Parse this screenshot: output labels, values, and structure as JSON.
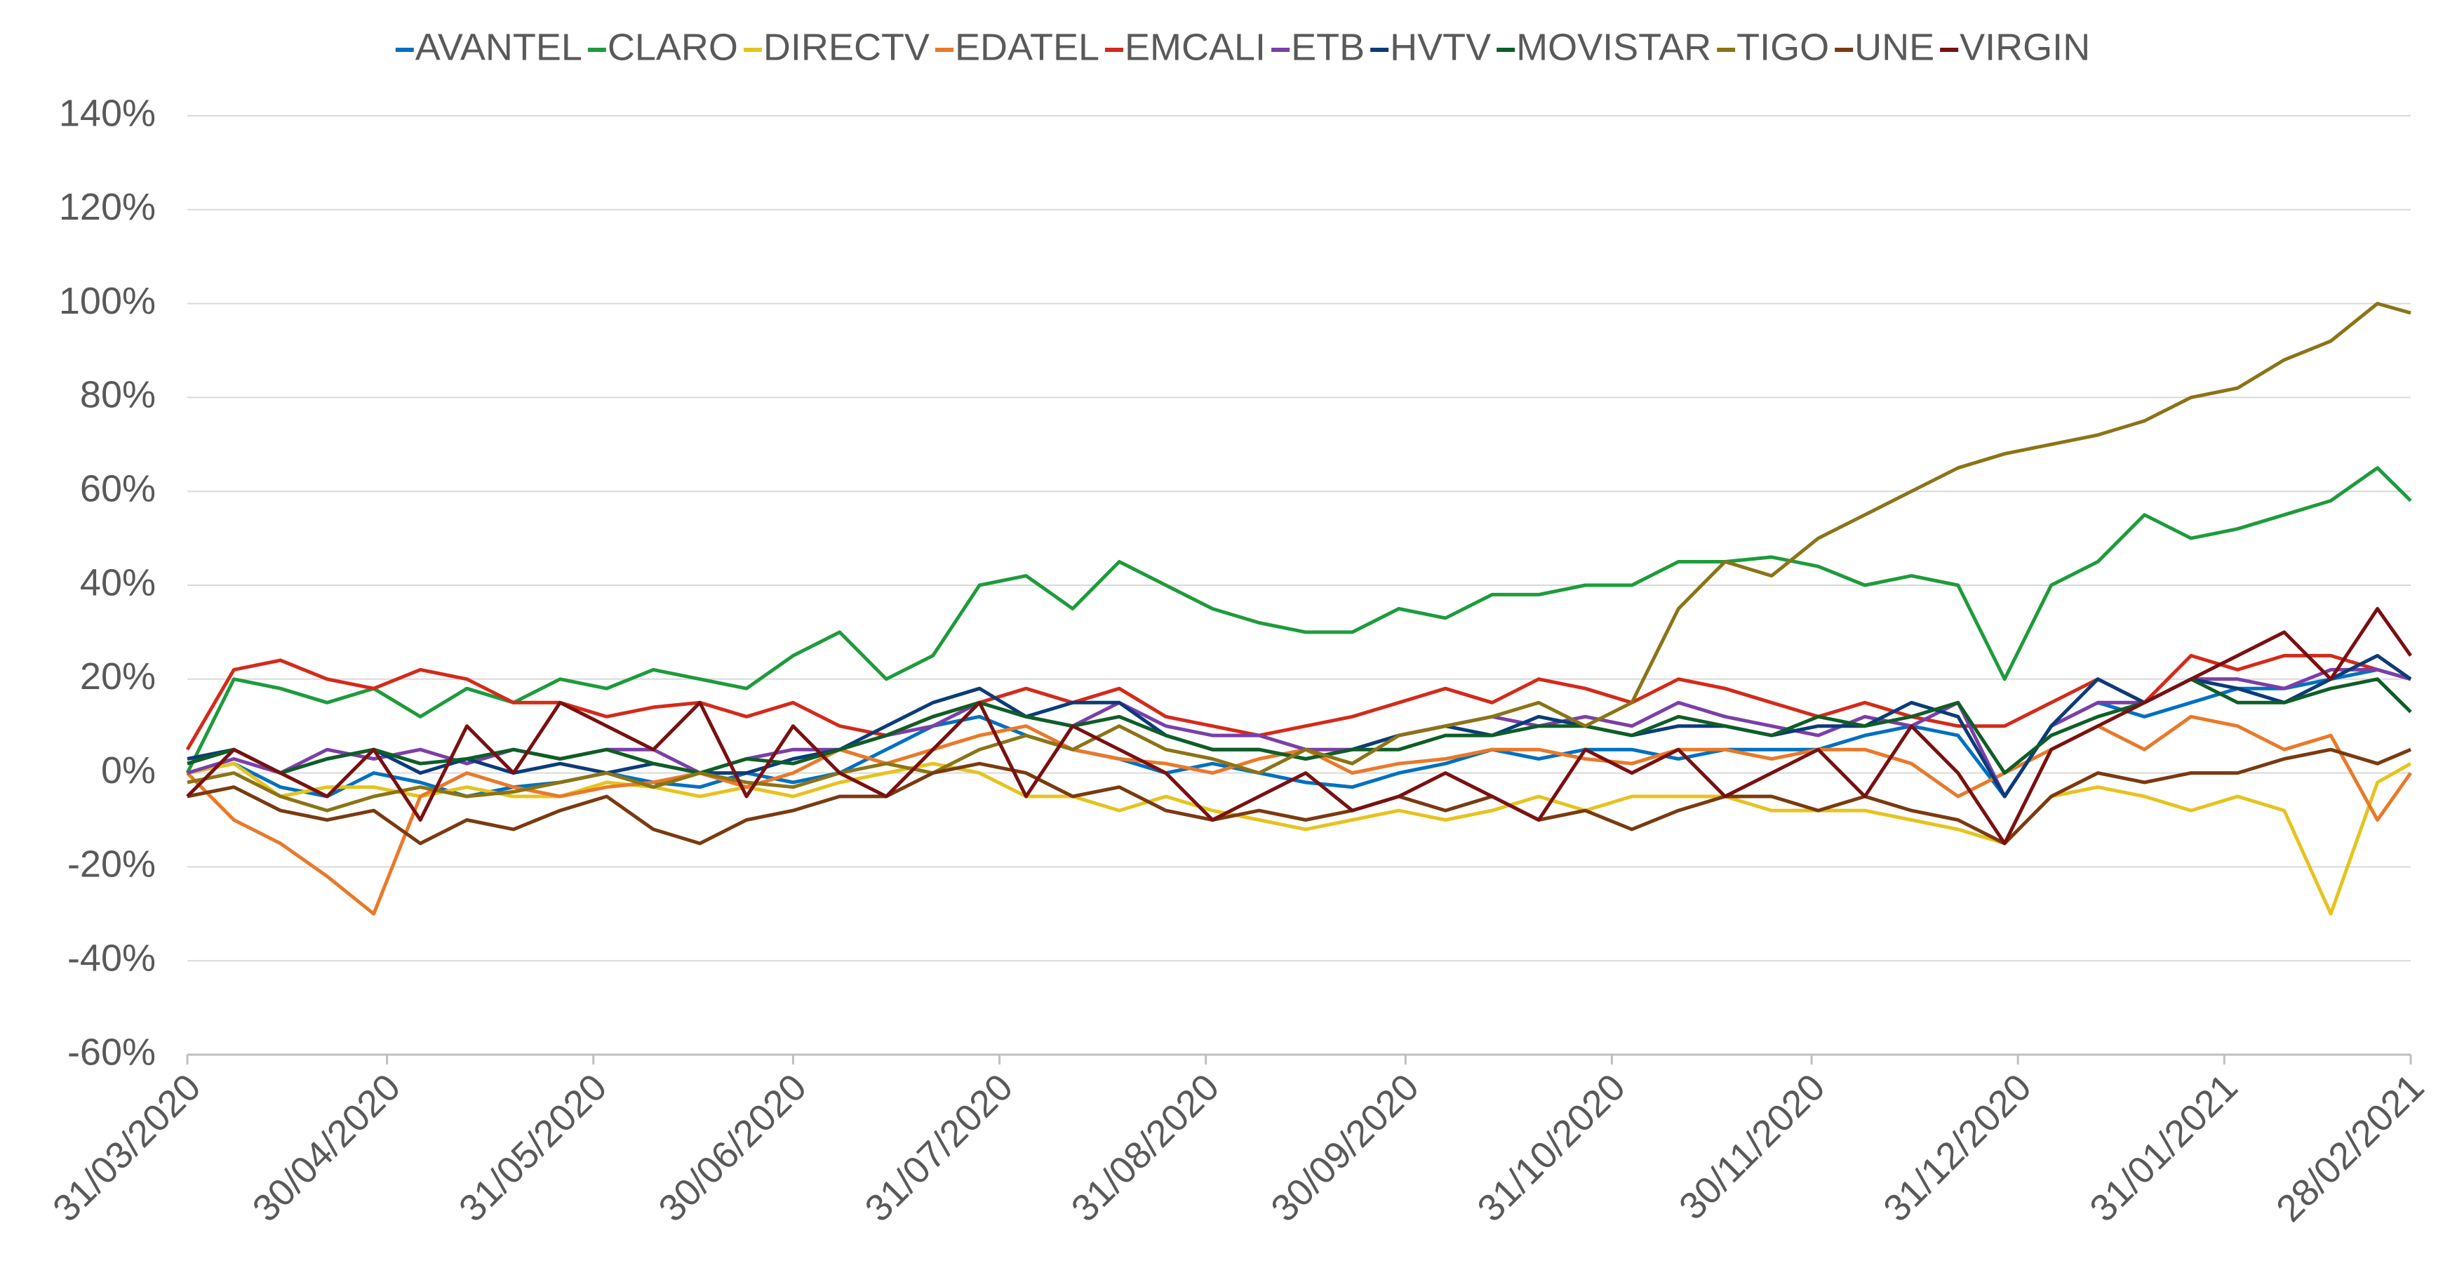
{
  "chart_data": {
    "type": "line",
    "x": [
      "31/03/2020",
      "07/04/2020",
      "14/04/2020",
      "21/04/2020",
      "28/04/2020",
      "05/05/2020",
      "12/05/2020",
      "19/05/2020",
      "26/05/2020",
      "02/06/2020",
      "09/06/2020",
      "16/06/2020",
      "23/06/2020",
      "30/06/2020",
      "07/07/2020",
      "14/07/2020",
      "21/07/2020",
      "28/07/2020",
      "04/08/2020",
      "11/08/2020",
      "18/08/2020",
      "25/08/2020",
      "01/09/2020",
      "08/09/2020",
      "15/09/2020",
      "22/09/2020",
      "29/09/2020",
      "06/10/2020",
      "13/10/2020",
      "20/10/2020",
      "27/10/2020",
      "03/11/2020",
      "10/11/2020",
      "17/11/2020",
      "24/11/2020",
      "01/12/2020",
      "08/12/2020",
      "15/12/2020",
      "22/12/2020",
      "29/12/2020",
      "05/01/2021",
      "12/01/2021",
      "19/01/2021",
      "26/01/2021",
      "02/02/2021",
      "09/02/2021",
      "16/02/2021",
      "23/02/2021",
      "28/02/2021"
    ],
    "series": [
      {
        "name": "AVANTEL",
        "color": "#0070c0",
        "values": [
          0,
          2,
          -3,
          -5,
          0,
          -2,
          -5,
          -3,
          -2,
          0,
          -2,
          -3,
          0,
          -2,
          0,
          5,
          10,
          12,
          8,
          5,
          3,
          0,
          2,
          0,
          -2,
          -3,
          0,
          2,
          5,
          3,
          5,
          5,
          3,
          5,
          5,
          5,
          8,
          10,
          8,
          -5,
          10,
          15,
          12,
          15,
          18,
          18,
          20,
          22,
          20
        ]
      },
      {
        "name": "CLARO",
        "color": "#1e9b3c",
        "values": [
          0,
          20,
          18,
          15,
          18,
          12,
          18,
          15,
          20,
          18,
          22,
          20,
          18,
          25,
          30,
          20,
          25,
          40,
          42,
          35,
          45,
          40,
          35,
          32,
          30,
          30,
          35,
          33,
          38,
          38,
          40,
          40,
          45,
          45,
          46,
          44,
          40,
          42,
          40,
          20,
          40,
          45,
          55,
          50,
          52,
          55,
          58,
          65,
          58
        ]
      },
      {
        "name": "DIRECTV",
        "color": "#e6c31e",
        "values": [
          0,
          2,
          -5,
          -3,
          -3,
          -5,
          -3,
          -5,
          -5,
          -2,
          -3,
          -5,
          -3,
          -5,
          -2,
          0,
          2,
          0,
          -5,
          -5,
          -8,
          -5,
          -8,
          -10,
          -12,
          -10,
          -8,
          -10,
          -8,
          -5,
          -8,
          -5,
          -5,
          -5,
          -8,
          -8,
          -8,
          -10,
          -12,
          -15,
          -5,
          -3,
          -5,
          -8,
          -5,
          -8,
          -30,
          -2,
          2
        ]
      },
      {
        "name": "EDATEL",
        "color": "#e9792a",
        "values": [
          0,
          -10,
          -15,
          -22,
          -30,
          -5,
          0,
          -3,
          -5,
          -3,
          -2,
          0,
          -3,
          0,
          5,
          2,
          5,
          8,
          10,
          5,
          3,
          2,
          0,
          3,
          5,
          0,
          2,
          3,
          5,
          5,
          3,
          2,
          5,
          5,
          3,
          5,
          5,
          2,
          -5,
          0,
          5,
          10,
          5,
          12,
          10,
          5,
          8,
          -10,
          0
        ]
      },
      {
        "name": "EMCALI",
        "color": "#d42a1a",
        "values": [
          5,
          22,
          24,
          20,
          18,
          22,
          20,
          15,
          15,
          12,
          14,
          15,
          12,
          15,
          10,
          8,
          12,
          15,
          18,
          15,
          18,
          12,
          10,
          8,
          10,
          12,
          15,
          18,
          15,
          20,
          18,
          15,
          20,
          18,
          15,
          12,
          15,
          12,
          10,
          10,
          15,
          20,
          15,
          25,
          22,
          25,
          25,
          22,
          20
        ]
      },
      {
        "name": "ETB",
        "color": "#7b3fa8",
        "values": [
          0,
          3,
          0,
          5,
          3,
          5,
          2,
          5,
          3,
          5,
          5,
          0,
          3,
          5,
          5,
          8,
          10,
          15,
          12,
          10,
          15,
          10,
          8,
          8,
          5,
          5,
          8,
          10,
          12,
          10,
          12,
          10,
          15,
          12,
          10,
          8,
          12,
          10,
          15,
          -5,
          10,
          15,
          15,
          20,
          20,
          18,
          22,
          22,
          20
        ]
      },
      {
        "name": "HVTV",
        "color": "#0b3c78",
        "values": [
          3,
          5,
          0,
          3,
          5,
          0,
          3,
          0,
          2,
          0,
          2,
          0,
          0,
          3,
          5,
          10,
          15,
          18,
          12,
          15,
          15,
          8,
          5,
          5,
          3,
          5,
          8,
          10,
          8,
          12,
          10,
          8,
          10,
          10,
          8,
          10,
          10,
          15,
          12,
          -5,
          10,
          20,
          15,
          20,
          18,
          15,
          20,
          25,
          20
        ]
      },
      {
        "name": "MOVISTAR",
        "color": "#0e5e26",
        "values": [
          2,
          5,
          0,
          3,
          5,
          2,
          3,
          5,
          3,
          5,
          2,
          0,
          3,
          2,
          5,
          8,
          12,
          15,
          12,
          10,
          12,
          8,
          5,
          5,
          3,
          5,
          5,
          8,
          8,
          10,
          10,
          8,
          12,
          10,
          8,
          12,
          10,
          12,
          15,
          0,
          8,
          12,
          15,
          20,
          15,
          15,
          18,
          20,
          13
        ]
      },
      {
        "name": "TIGO",
        "color": "#8b7416",
        "values": [
          -2,
          0,
          -5,
          -8,
          -5,
          -3,
          -5,
          -4,
          -2,
          0,
          -3,
          0,
          -2,
          -3,
          0,
          2,
          0,
          5,
          8,
          5,
          10,
          5,
          3,
          0,
          5,
          2,
          8,
          10,
          12,
          15,
          10,
          15,
          35,
          45,
          42,
          50,
          55,
          60,
          65,
          68,
          70,
          72,
          75,
          80,
          82,
          88,
          92,
          100,
          98
        ]
      },
      {
        "name": "UNE",
        "color": "#7a3a10",
        "values": [
          -5,
          -3,
          -8,
          -10,
          -8,
          -15,
          -10,
          -12,
          -8,
          -5,
          -12,
          -15,
          -10,
          -8,
          -5,
          -5,
          0,
          2,
          0,
          -5,
          -3,
          -8,
          -10,
          -8,
          -10,
          -8,
          -5,
          -8,
          -5,
          -10,
          -8,
          -12,
          -8,
          -5,
          -5,
          -8,
          -5,
          -8,
          -10,
          -15,
          -5,
          0,
          -2,
          0,
          0,
          3,
          5,
          2,
          5
        ]
      },
      {
        "name": "VIRGIN",
        "color": "#7a1010",
        "values": [
          -5,
          5,
          0,
          -5,
          5,
          -10,
          10,
          0,
          15,
          10,
          5,
          15,
          -5,
          10,
          0,
          -5,
          5,
          15,
          -5,
          10,
          5,
          0,
          -10,
          -5,
          0,
          -8,
          -5,
          0,
          -5,
          -10,
          5,
          0,
          5,
          -5,
          0,
          5,
          -5,
          10,
          0,
          -15,
          5,
          10,
          15,
          20,
          25,
          30,
          20,
          35,
          25
        ]
      }
    ],
    "xlim": [
      "31/03/2020",
      "28/02/2021"
    ],
    "xticks": [
      "31/03/2020",
      "30/04/2020",
      "31/05/2020",
      "30/06/2020",
      "31/07/2020",
      "31/08/2020",
      "30/09/2020",
      "31/10/2020",
      "30/11/2020",
      "31/12/2020",
      "31/01/2021",
      "28/02/2021"
    ],
    "ylim": [
      -60,
      140
    ],
    "yticks": [
      {
        "value": -60,
        "label": "-60%"
      },
      {
        "value": -40,
        "label": "-40%"
      },
      {
        "value": -20,
        "label": "-20%"
      },
      {
        "value": 0,
        "label": "0%"
      },
      {
        "value": 20,
        "label": "20%"
      },
      {
        "value": 40,
        "label": "40%"
      },
      {
        "value": 60,
        "label": "60%"
      },
      {
        "value": 80,
        "label": "80%"
      },
      {
        "value": 100,
        "label": "100%"
      },
      {
        "value": 120,
        "label": "120%"
      },
      {
        "value": 140,
        "label": "140%"
      }
    ],
    "grid": true,
    "legend": "top"
  }
}
